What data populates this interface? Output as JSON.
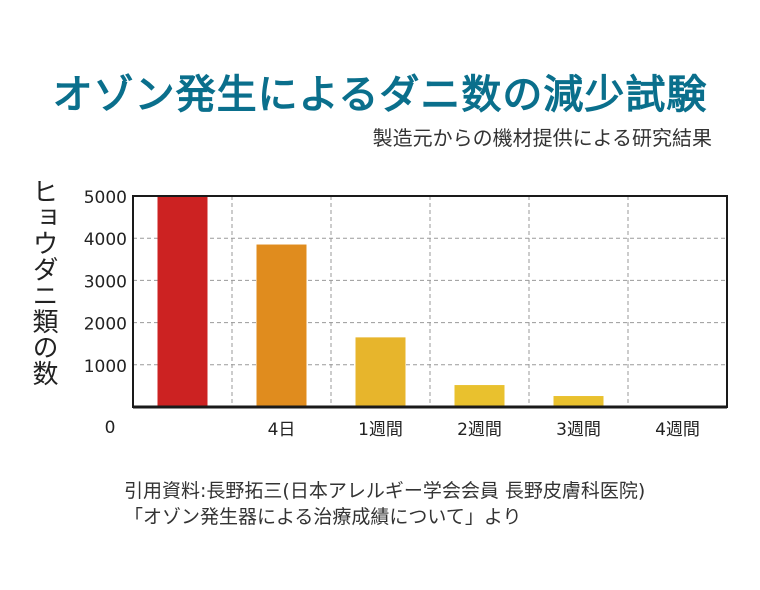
{
  "header": {
    "title": "オゾン発生によるダニ数の減少試験",
    "subtitle": "製造元からの機材提供による研究結果"
  },
  "chart_data": {
    "type": "bar",
    "ylabel": "ヒョウダニ類の数",
    "categories": [
      "",
      "4日",
      "1週間",
      "2週間",
      "3週間",
      "4週間"
    ],
    "values": [
      5000,
      3850,
      1650,
      520,
      260,
      0
    ],
    "bar_colors": [
      "#cc2222",
      "#e08c1e",
      "#e7b52c",
      "#e9c12e",
      "#e9c12e",
      "#e9c12e"
    ],
    "yticks": [
      "5000",
      "4000",
      "3000",
      "2000",
      "1000"
    ],
    "ytick_values": [
      5000,
      4000,
      3000,
      2000,
      1000
    ],
    "origin_label": "0",
    "ylim": [
      0,
      5000
    ],
    "grid": true
  },
  "source": {
    "line1": "引用資料:長野拓三(日本アレルギー学会会員 長野皮膚科医院)",
    "line2": "「オゾン発生器による治療成績について」より"
  }
}
